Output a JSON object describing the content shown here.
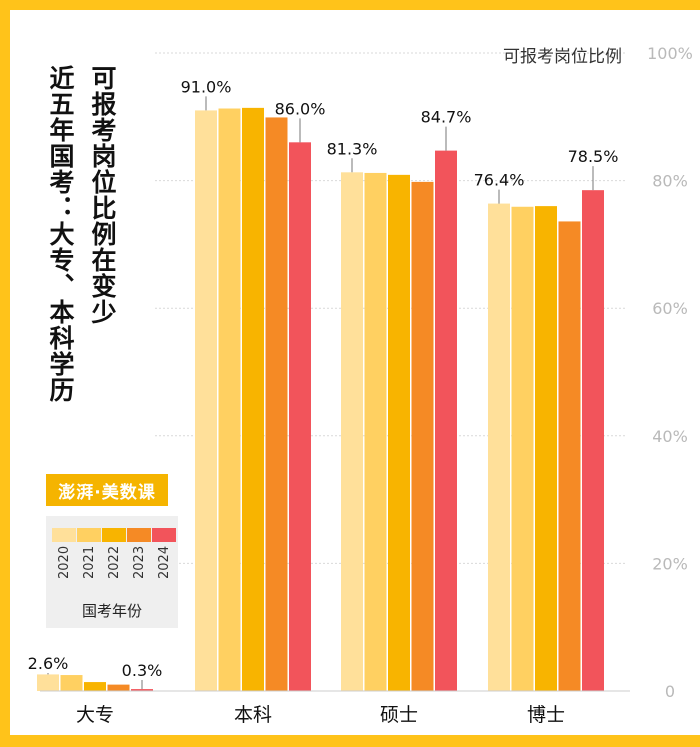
{
  "title": {
    "line1": "可报考岗位比例在变少",
    "line2": "近五年国考：大专、本科学历"
  },
  "logo_text": "澎湃·美数课",
  "legend": {
    "label": "国考年份",
    "years": [
      "2020",
      "2021",
      "2022",
      "2023",
      "2024"
    ]
  },
  "colors": {
    "background": "#ffc31a",
    "series": [
      "#ffe09a",
      "#ffd061",
      "#f8b400",
      "#f58a25",
      "#f2545b"
    ],
    "grid": "#d9d9d9",
    "axis_text": "#b9b9b9"
  },
  "chart_data": {
    "type": "bar",
    "title": "可报考岗位比例",
    "ylabel": "可报考岗位比例",
    "xlabel": "",
    "ylim": [
      0,
      100
    ],
    "yticks": [
      "0",
      "20%",
      "40%",
      "60%",
      "80%",
      "100%"
    ],
    "categories": [
      "大专",
      "本科",
      "硕士",
      "博士"
    ],
    "series": [
      {
        "name": "2020",
        "values": [
          2.6,
          91.0,
          81.3,
          76.4
        ]
      },
      {
        "name": "2021",
        "values": [
          2.5,
          91.3,
          81.2,
          75.9
        ]
      },
      {
        "name": "2022",
        "values": [
          1.4,
          91.4,
          80.9,
          76.0
        ]
      },
      {
        "name": "2023",
        "values": [
          1.0,
          89.9,
          79.8,
          73.6
        ]
      },
      {
        "name": "2024",
        "values": [
          0.3,
          86.0,
          84.7,
          78.5
        ]
      }
    ],
    "data_labels": [
      {
        "category": 0,
        "series": 0,
        "text": "2.6%"
      },
      {
        "category": 0,
        "series": 4,
        "text": "0.3%"
      },
      {
        "category": 1,
        "series": 0,
        "text": "91.0%"
      },
      {
        "category": 1,
        "series": 4,
        "text": "86.0%"
      },
      {
        "category": 2,
        "series": 0,
        "text": "81.3%"
      },
      {
        "category": 2,
        "series": 4,
        "text": "84.7%"
      },
      {
        "category": 3,
        "series": 0,
        "text": "76.4%"
      },
      {
        "category": 3,
        "series": 4,
        "text": "78.5%"
      }
    ]
  }
}
